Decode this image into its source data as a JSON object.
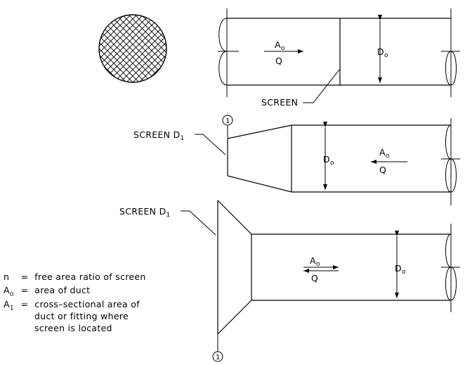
{
  "labels": {
    "screen": "SCREEN",
    "screen_d1_prefix": "SCREEN D",
    "screen_d1_sub": "1",
    "area_symbol": "A",
    "area_sub": "o",
    "flow_symbol": "Q",
    "duct_diameter": "D",
    "duct_diameter_sub": "o",
    "section_marker": "1"
  },
  "legend": [
    {
      "symbol": "n",
      "sub": "",
      "definition": "free area ratio of screen"
    },
    {
      "symbol": "A",
      "sub": "o",
      "definition": "area of duct"
    },
    {
      "symbol": "A",
      "sub": "1",
      "definition": "cross–sectional area of"
    },
    {
      "symbol": "",
      "sub": "",
      "definition": "duct or fitting where"
    },
    {
      "symbol": "",
      "sub": "",
      "definition": "screen is located"
    }
  ]
}
